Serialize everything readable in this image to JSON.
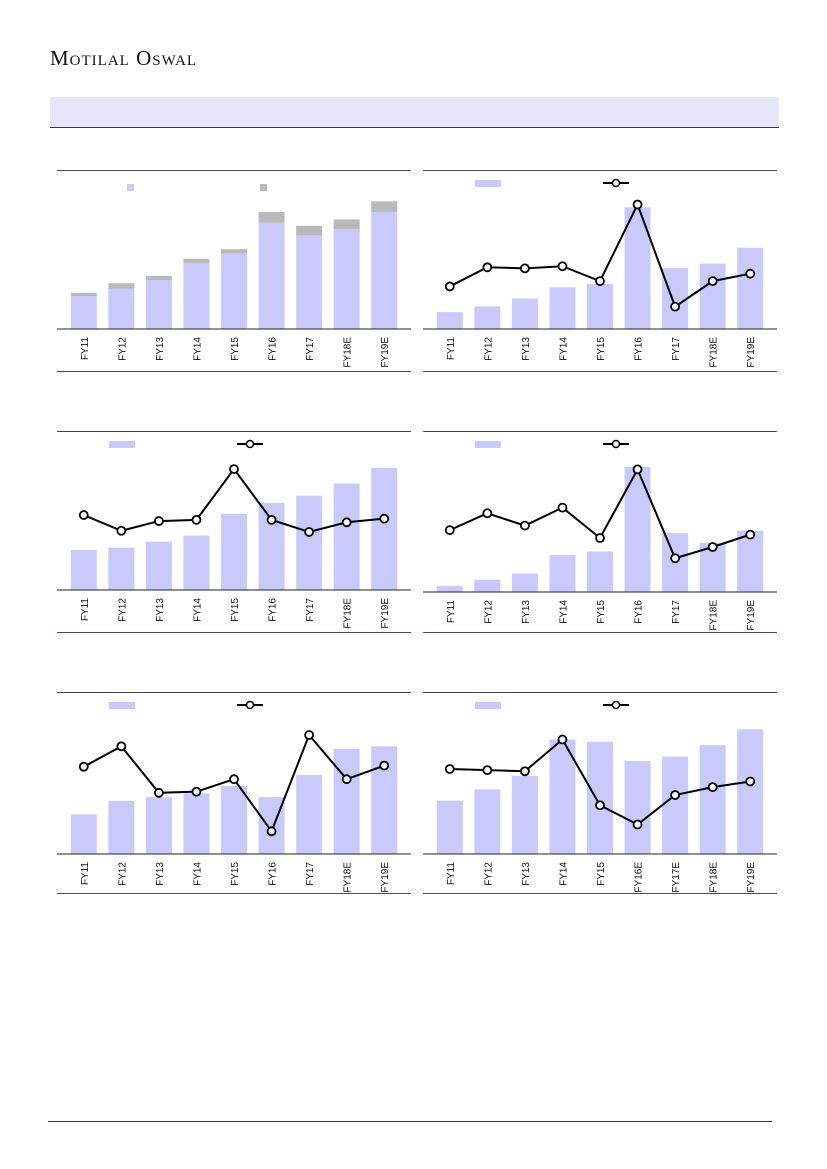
{
  "header": {
    "brand": "Motilal Oswal"
  },
  "colors": {
    "bar": "#c9c9fb",
    "stack": "#b9b9b9",
    "line": "#000000",
    "marker_fill": "#ffffff"
  },
  "chart_data": [
    {
      "type": "bar",
      "stacked": true,
      "categories": [
        "FY11",
        "FY12",
        "FY13",
        "FY14",
        "FY15",
        "FY16",
        "FY17",
        "FY18E",
        "FY19E"
      ],
      "series": [
        {
          "values": [
            31,
            38,
            46,
            62,
            71,
            100,
            88,
            94,
            110
          ]
        },
        {
          "values": [
            3,
            5,
            4,
            4,
            4,
            10,
            9,
            9,
            10
          ]
        }
      ],
      "ylim": [
        0,
        125
      ],
      "legend": "top",
      "grid": false
    },
    {
      "type": "bar+line",
      "categories": [
        "FY11",
        "FY12",
        "FY13",
        "FY14",
        "FY15",
        "FY16",
        "FY17",
        "FY18E",
        "FY19E"
      ],
      "series": [
        {
          "type": "bar",
          "values": [
            15,
            20,
            27,
            37,
            40,
            108,
            54,
            58,
            72
          ],
          "ylim": [
            0,
            118
          ]
        },
        {
          "type": "line",
          "values": [
            40,
            58,
            57,
            59,
            45,
            117,
            21,
            45,
            52
          ],
          "ylim": [
            0,
            125
          ]
        }
      ],
      "legend": "top",
      "grid": false
    },
    {
      "type": "bar+line",
      "categories": [
        "FY11",
        "FY12",
        "FY13",
        "FY14",
        "FY15",
        "FY16",
        "FY17",
        "FY18E",
        "FY19E"
      ],
      "series": [
        {
          "type": "bar",
          "values": [
            33,
            35,
            40,
            45,
            63,
            72,
            78,
            88,
            101
          ],
          "ylim": [
            0,
            110
          ]
        },
        {
          "type": "line",
          "values": [
            62,
            49,
            57,
            58,
            100,
            58,
            48,
            56,
            59
          ],
          "ylim": [
            0,
            110
          ]
        }
      ],
      "legend": "top",
      "grid": false
    },
    {
      "type": "bar+line",
      "categories": [
        "FY11",
        "FY12",
        "FY13",
        "FY14",
        "FY15",
        "FY16",
        "FY17",
        "FY18E",
        "FY19E"
      ],
      "series": [
        {
          "type": "bar",
          "values": [
            5,
            10,
            15,
            30,
            33,
            102,
            48,
            40,
            50
          ],
          "ylim": [
            0,
            110
          ]
        },
        {
          "type": "line",
          "values": [
            55,
            70,
            59,
            75,
            48,
            109,
            30,
            40,
            51
          ],
          "ylim": [
            0,
            120
          ]
        }
      ],
      "legend": "top",
      "grid": false
    },
    {
      "type": "bar+line",
      "categories": [
        "FY11",
        "FY12",
        "FY13",
        "FY14",
        "FY15",
        "FY16",
        "FY17",
        "FY18E",
        "FY19E"
      ],
      "series": [
        {
          "type": "bar",
          "values": [
            32,
            43,
            46,
            49,
            55,
            46,
            64,
            85,
            87
          ],
          "ylim": [
            0,
            110
          ]
        },
        {
          "type": "line",
          "values": [
            77,
            95,
            54,
            55,
            66,
            20,
            105,
            66,
            78
          ],
          "ylim": [
            0,
            120
          ]
        }
      ],
      "legend": "top",
      "grid": false
    },
    {
      "type": "bar+line",
      "categories": [
        "FY11",
        "FY12",
        "FY13",
        "FY14",
        "FY15",
        "FY16E",
        "FY17E",
        "FY18E",
        "FY19E"
      ],
      "series": [
        {
          "type": "bar",
          "values": [
            47,
            57,
            69,
            101,
            99,
            82,
            86,
            96,
            110
          ],
          "ylim": [
            0,
            120
          ]
        },
        {
          "type": "line",
          "values": [
            75,
            74,
            73,
            101,
            43,
            26,
            52,
            59,
            64
          ],
          "ylim": [
            0,
            120
          ]
        }
      ],
      "legend": "top",
      "grid": false
    }
  ]
}
